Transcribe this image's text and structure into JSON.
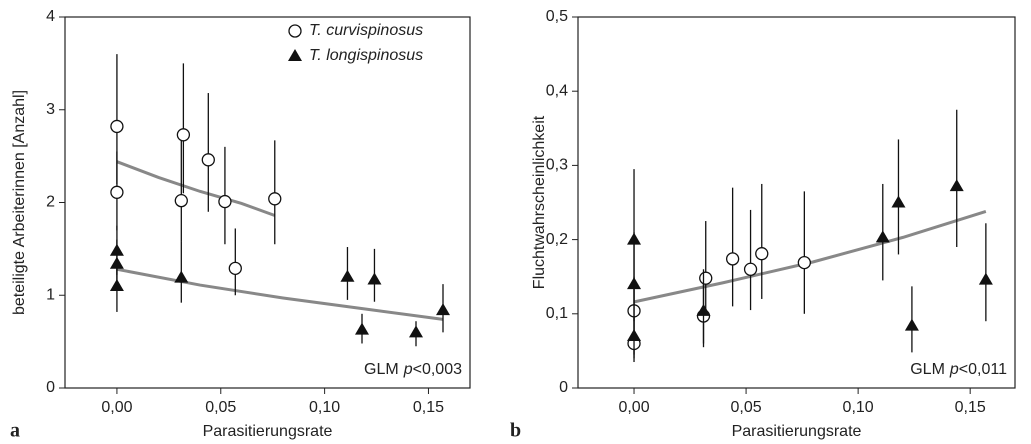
{
  "chart_data": [
    {
      "type": "scatter",
      "panel": "a",
      "xlabel": "Parasitierungsrate",
      "ylabel": "beteiligte Arbeiterinnen [Anzahl]",
      "annotation": [
        "GLM",
        "p",
        "<0,003"
      ],
      "xlim": [
        -0.025,
        0.17
      ],
      "xticks": [
        {
          "value": 0,
          "label": "0,00"
        },
        {
          "value": 0.05,
          "label": "0,05"
        },
        {
          "value": 0.1,
          "label": "0,10"
        },
        {
          "value": 0.15,
          "label": "0,15"
        }
      ],
      "ylim": [
        0,
        4
      ],
      "yticks": [
        0,
        1,
        2,
        3,
        4
      ],
      "legend": "top-right",
      "series": [
        {
          "name": "T. curvispinosus",
          "marker": "circle",
          "color": "#111111",
          "x": [
            0,
            0,
            0.032,
            0.031,
            0.044,
            0.052,
            0.057,
            0.076
          ],
          "values": [
            2.82,
            2.11,
            2.73,
            2.02,
            2.46,
            2.01,
            1.29,
            2.04
          ],
          "err_low": [
            2.2,
            1.7,
            2.1,
            1.58,
            1.9,
            1.55,
            1.0,
            1.55
          ],
          "err_high": [
            3.6,
            2.55,
            3.5,
            2.7,
            3.18,
            2.6,
            1.72,
            2.67
          ],
          "fit": {
            "color": "#888888",
            "x": [
              0,
              0.02,
              0.04,
              0.06,
              0.076
            ],
            "values": [
              2.44,
              2.27,
              2.12,
              1.99,
              1.86
            ]
          }
        },
        {
          "name": "T. longispinosus",
          "marker": "triangle",
          "color": "#111111",
          "x": [
            0,
            0,
            0,
            0.031,
            0.111,
            0.118,
            0.124,
            0.144,
            0.157
          ],
          "values": [
            1.48,
            1.34,
            1.1,
            1.19,
            1.2,
            0.63,
            1.17,
            0.6,
            0.84
          ],
          "err_low": [
            1.22,
            1.1,
            0.82,
            0.92,
            0.95,
            0.48,
            0.93,
            0.45,
            0.6
          ],
          "err_high": [
            1.75,
            1.6,
            1.35,
            1.58,
            1.52,
            0.8,
            1.5,
            0.72,
            1.12
          ],
          "fit": {
            "color": "#888888",
            "x": [
              0,
              0.04,
              0.08,
              0.12,
              0.157
            ],
            "values": [
              1.28,
              1.11,
              0.97,
              0.85,
              0.74
            ]
          }
        }
      ]
    },
    {
      "type": "scatter",
      "panel": "b",
      "xlabel": "Parasitierungsrate",
      "ylabel": "Fluchtwahrscheinlichkeit",
      "annotation": [
        "GLM",
        "p",
        "<0,011"
      ],
      "xlim": [
        -0.025,
        0.17
      ],
      "xticks": [
        {
          "value": 0,
          "label": "0,00"
        },
        {
          "value": 0.05,
          "label": "0,05"
        },
        {
          "value": 0.1,
          "label": "0,10"
        },
        {
          "value": 0.15,
          "label": "0,15"
        }
      ],
      "ylim": [
        0,
        0.5
      ],
      "yticks": [
        0,
        {
          "value": 0.1,
          "label": "0,1"
        },
        {
          "value": 0.2,
          "label": "0,2"
        },
        {
          "value": 0.3,
          "label": "0,3"
        },
        {
          "value": 0.4,
          "label": "0,4"
        },
        {
          "value": 0.5,
          "label": "0,5"
        }
      ],
      "series": [
        {
          "marker": "circle",
          "color": "#111111",
          "x": [
            0,
            0,
            0.032,
            0.031,
            0.044,
            0.052,
            0.057,
            0.076
          ],
          "values": [
            0.104,
            0.06,
            0.148,
            0.097,
            0.174,
            0.16,
            0.181,
            0.169
          ],
          "err_low": [
            0.045,
            0.035,
            0.09,
            0.055,
            0.11,
            0.105,
            0.12,
            0.1
          ],
          "err_high": [
            0.15,
            0.1,
            0.225,
            0.15,
            0.27,
            0.24,
            0.275,
            0.265
          ]
        },
        {
          "marker": "triangle",
          "color": "#111111",
          "x": [
            0,
            0,
            0,
            0.031,
            0.111,
            0.118,
            0.124,
            0.144,
            0.157
          ],
          "values": [
            0.2,
            0.14,
            0.07,
            0.104,
            0.203,
            0.25,
            0.084,
            0.272,
            0.146
          ],
          "err_low": [
            0.12,
            0.09,
            0.04,
            0.06,
            0.145,
            0.18,
            0.048,
            0.19,
            0.09
          ],
          "err_high": [
            0.295,
            0.21,
            0.12,
            0.16,
            0.275,
            0.335,
            0.137,
            0.375,
            0.222
          ],
          "fit": {
            "color": "#888888",
            "x": [
              0,
              0.04,
              0.08,
              0.12,
              0.157
            ],
            "values": [
              0.116,
              0.142,
              0.17,
              0.203,
              0.238
            ]
          }
        }
      ]
    }
  ]
}
